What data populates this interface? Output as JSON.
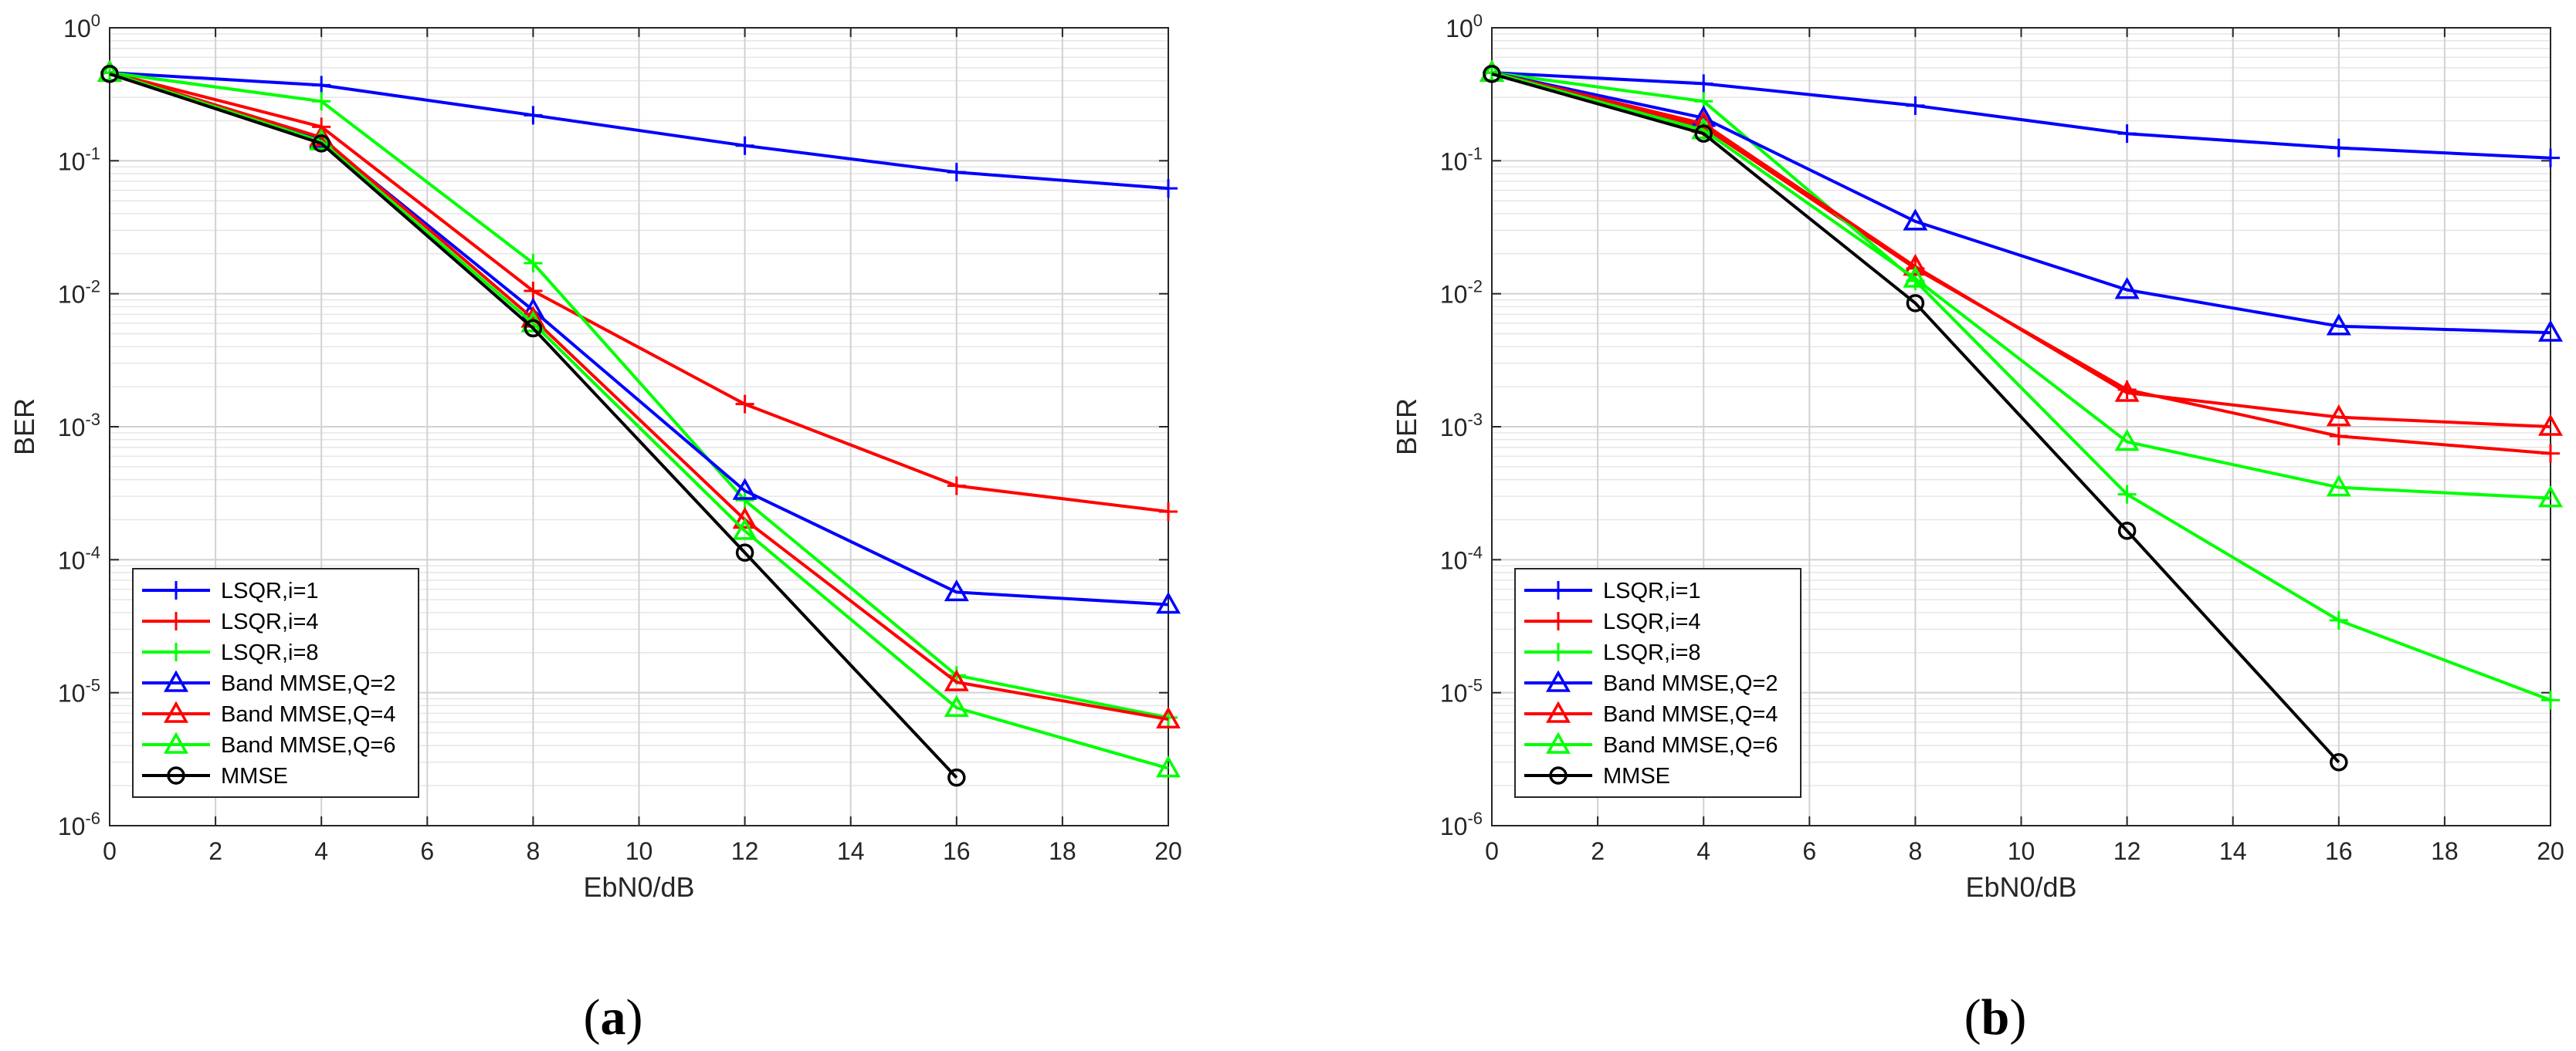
{
  "chart_data": [
    {
      "type": "line",
      "caption": {
        "open": "(",
        "letter": "a",
        "close": ")"
      },
      "xlabel": "EbN0/dB",
      "ylabel": "BER",
      "xlim": [
        0,
        20
      ],
      "ylim": [
        1e-06,
        1
      ],
      "yscale": "log",
      "grid": true,
      "x_ticks": [
        "0",
        "2",
        "4",
        "6",
        "8",
        "10",
        "12",
        "14",
        "16",
        "18",
        "20"
      ],
      "y_ticks": [
        {
          "base": "10",
          "exp": "-6"
        },
        {
          "base": "10",
          "exp": "-5"
        },
        {
          "base": "10",
          "exp": "-4"
        },
        {
          "base": "10",
          "exp": "-3"
        },
        {
          "base": "10",
          "exp": "-2"
        },
        {
          "base": "10",
          "exp": "-1"
        },
        {
          "base": "10",
          "exp": "0"
        }
      ],
      "legend_position": "bottom-left",
      "series": [
        {
          "name": "LSQR,i=1",
          "color": "#0000ff",
          "marker": "plus",
          "x": [
            0,
            4,
            8,
            12,
            16,
            20
          ],
          "y": [
            0.46,
            0.37,
            0.22,
            0.13,
            0.082,
            0.062
          ]
        },
        {
          "name": "LSQR,i=4",
          "color": "#ff0000",
          "marker": "plus",
          "x": [
            0,
            4,
            8,
            12,
            16,
            20
          ],
          "y": [
            0.46,
            0.18,
            0.0105,
            0.00148,
            0.00036,
            0.00023
          ]
        },
        {
          "name": "LSQR,i=8",
          "color": "#00ff00",
          "marker": "plus",
          "x": [
            0,
            4,
            8,
            12,
            16,
            20
          ],
          "y": [
            0.46,
            0.28,
            0.017,
            0.00028,
            1.35e-05,
            6.5e-06
          ]
        },
        {
          "name": "Band MMSE,Q=2",
          "color": "#0000ff",
          "marker": "triangle",
          "x": [
            0,
            4,
            8,
            12,
            16,
            20
          ],
          "y": [
            0.46,
            0.145,
            0.0075,
            0.00033,
            5.7e-05,
            4.6e-05
          ]
        },
        {
          "name": "Band MMSE,Q=4",
          "color": "#ff0000",
          "marker": "triangle",
          "x": [
            0,
            4,
            8,
            12,
            16,
            20
          ],
          "y": [
            0.46,
            0.15,
            0.0065,
            0.0002,
            1.2e-05,
            6.3e-06
          ]
        },
        {
          "name": "Band MMSE,Q=6",
          "color": "#00ff00",
          "marker": "triangle",
          "x": [
            0,
            4,
            8,
            12,
            16,
            20
          ],
          "y": [
            0.46,
            0.14,
            0.006,
            0.000165,
            7.7e-06,
            2.7e-06
          ]
        },
        {
          "name": "MMSE",
          "color": "#000000",
          "marker": "circle",
          "x": [
            0,
            4,
            8,
            12,
            16
          ],
          "y": [
            0.45,
            0.135,
            0.0055,
            0.000113,
            2.3e-06
          ]
        }
      ]
    },
    {
      "type": "line",
      "caption": {
        "open": "(",
        "letter": "b",
        "close": ")"
      },
      "xlabel": "EbN0/dB",
      "ylabel": "BER",
      "xlim": [
        0,
        20
      ],
      "ylim": [
        1e-06,
        1
      ],
      "yscale": "log",
      "grid": true,
      "x_ticks": [
        "0",
        "2",
        "4",
        "6",
        "8",
        "10",
        "12",
        "14",
        "16",
        "18",
        "20"
      ],
      "y_ticks": [
        {
          "base": "10",
          "exp": "-6"
        },
        {
          "base": "10",
          "exp": "-5"
        },
        {
          "base": "10",
          "exp": "-4"
        },
        {
          "base": "10",
          "exp": "-3"
        },
        {
          "base": "10",
          "exp": "-2"
        },
        {
          "base": "10",
          "exp": "-1"
        },
        {
          "base": "10",
          "exp": "0"
        }
      ],
      "legend_position": "bottom-left",
      "series": [
        {
          "name": "LSQR,i=1",
          "color": "#0000ff",
          "marker": "plus",
          "x": [
            0,
            4,
            8,
            12,
            16,
            20
          ],
          "y": [
            0.46,
            0.38,
            0.26,
            0.16,
            0.125,
            0.105
          ]
        },
        {
          "name": "LSQR,i=4",
          "color": "#ff0000",
          "marker": "plus",
          "x": [
            0,
            4,
            8,
            12,
            16,
            20
          ],
          "y": [
            0.46,
            0.18,
            0.0155,
            0.0019,
            0.00085,
            0.00063
          ]
        },
        {
          "name": "LSQR,i=8",
          "color": "#00ff00",
          "marker": "plus",
          "x": [
            0,
            4,
            8,
            12,
            16,
            20
          ],
          "y": [
            0.46,
            0.28,
            0.0125,
            0.00031,
            3.5e-05,
            8.8e-06
          ]
        },
        {
          "name": "Band MMSE,Q=2",
          "color": "#0000ff",
          "marker": "triangle",
          "x": [
            0,
            4,
            8,
            12,
            16,
            20
          ],
          "y": [
            0.46,
            0.21,
            0.035,
            0.0107,
            0.0057,
            0.0051
          ]
        },
        {
          "name": "Band MMSE,Q=4",
          "color": "#ff0000",
          "marker": "triangle",
          "x": [
            0,
            4,
            8,
            12,
            16,
            20
          ],
          "y": [
            0.46,
            0.19,
            0.016,
            0.0018,
            0.00118,
            0.001
          ]
        },
        {
          "name": "Band MMSE,Q=6",
          "color": "#00ff00",
          "marker": "triangle",
          "x": [
            0,
            4,
            8,
            12,
            16,
            20
          ],
          "y": [
            0.46,
            0.17,
            0.013,
            0.00077,
            0.00035,
            0.00029
          ]
        },
        {
          "name": "MMSE",
          "color": "#000000",
          "marker": "circle",
          "x": [
            0,
            4,
            8,
            12,
            16
          ],
          "y": [
            0.45,
            0.16,
            0.0085,
            0.000165,
            3e-06
          ]
        }
      ]
    }
  ]
}
